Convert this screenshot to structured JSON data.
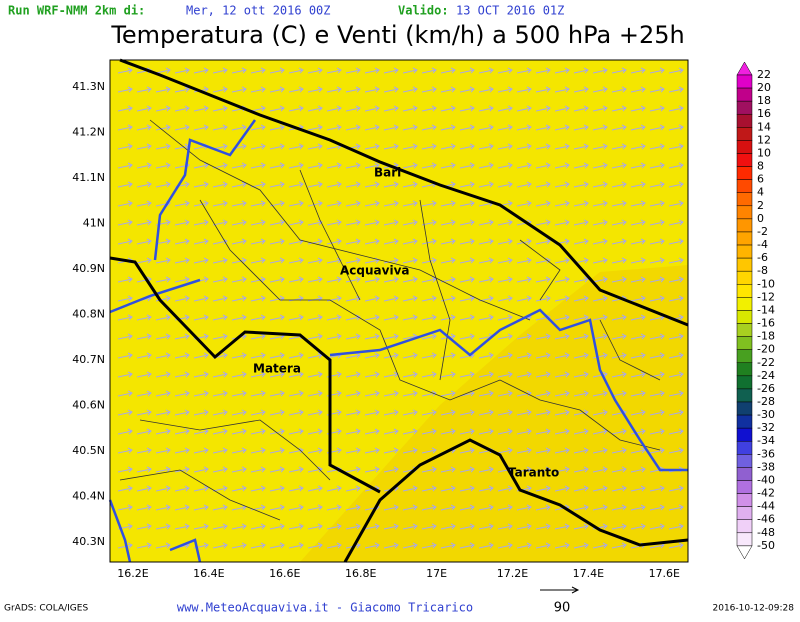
{
  "header": {
    "run_label": "Run WRF-NMM 2km di:",
    "run_date": "Mer, 12 ott 2016 00Z",
    "valid_label": "Valido:",
    "valid_date": "13 OCT 2016 01Z",
    "title": "Temperatura (C) e Venti (km/h) a 500 hPa +25h"
  },
  "map": {
    "y_labels": [
      "41.3N",
      "41.2N",
      "41.1N",
      "41N",
      "40.9N",
      "40.8N",
      "40.7N",
      "40.6N",
      "40.5N",
      "40.4N",
      "40.3N"
    ],
    "x_labels": [
      "16.2E",
      "16.4E",
      "16.6E",
      "16.8E",
      "17E",
      "17.2E",
      "17.4E",
      "17.6E"
    ],
    "cities": [
      "Bari",
      "Acquaviva",
      "Matera",
      "Taranto"
    ]
  },
  "colorbar": {
    "levels": [
      22,
      20,
      18,
      16,
      14,
      12,
      10,
      8,
      6,
      4,
      2,
      0,
      -2,
      -4,
      -6,
      -8,
      -10,
      -12,
      -14,
      -16,
      -18,
      -20,
      -22,
      -24,
      -26,
      -28,
      -30,
      -32,
      -34,
      -36,
      -38,
      -40,
      -42,
      -44,
      -46,
      -48,
      -50
    ],
    "colors": [
      "#f020e0",
      "#e000c8",
      "#c0008a",
      "#a01060",
      "#a81030",
      "#c01818",
      "#d81010",
      "#f01010",
      "#ff2a00",
      "#ff4a00",
      "#ff6a00",
      "#ff8400",
      "#ff9600",
      "#ffa400",
      "#ffb400",
      "#ffc600",
      "#ffd600",
      "#ffe600",
      "#f2f000",
      "#d8e800",
      "#a8d020",
      "#80c020",
      "#48a020",
      "#208020",
      "#107030",
      "#106050",
      "#104070",
      "#1030a0",
      "#1010d0",
      "#4040e0",
      "#7060e0",
      "#9060d0",
      "#b070e0",
      "#d090e8",
      "#e0b0f0",
      "#f0d0f8",
      "#f8e8fc",
      "#ffffff"
    ]
  },
  "footer": {
    "left": "GrADS: COLA/IGES",
    "center": "www.MeteoAcquaviva.it - Giacomo Tricarico",
    "arrow_label": "90",
    "right": "2016-10-12-09:28"
  }
}
